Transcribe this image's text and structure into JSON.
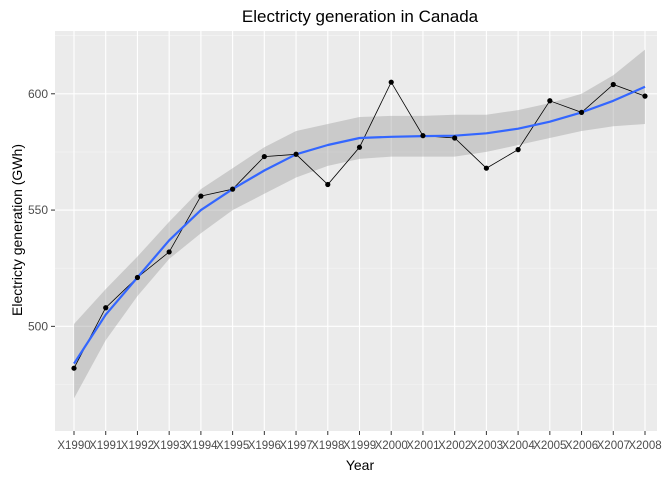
{
  "chart_data": {
    "type": "line",
    "title": "Electricty generation in Canada",
    "xlabel": "Year",
    "ylabel": "Electricty generation (GWh)",
    "categories": [
      "X1990",
      "X1991",
      "X1992",
      "X1993",
      "X1994",
      "X1995",
      "X1996",
      "X1997",
      "X1998",
      "X1999",
      "X2000",
      "X2001",
      "X2002",
      "X2003",
      "X2004",
      "X2005",
      "X2006",
      "X2007",
      "X2008"
    ],
    "values": [
      482,
      508,
      521,
      532,
      556,
      559,
      573,
      574,
      561,
      577,
      605,
      582,
      581,
      568,
      576,
      597,
      592,
      604,
      599
    ],
    "smooth": {
      "method": "loess",
      "values": [
        484,
        505,
        521,
        537,
        550,
        559,
        567,
        574,
        578,
        581,
        581.5,
        581.8,
        582,
        583,
        585,
        588,
        592,
        597,
        603
      ],
      "ci_lower": [
        469,
        494,
        513,
        529,
        540,
        550,
        557,
        564,
        569,
        572,
        573,
        573,
        573,
        575,
        578,
        581,
        584,
        586,
        587
      ],
      "ci_upper": [
        501,
        516,
        530,
        545,
        559,
        568,
        577,
        584,
        587,
        590,
        590.5,
        590.5,
        591,
        591,
        593,
        596,
        600,
        608,
        619
      ]
    },
    "yticks": [
      500,
      550,
      600
    ],
    "ylim": [
      455,
      627
    ],
    "grid": true,
    "colors": {
      "panel": "#ebebeb",
      "grid_major": "#ffffff",
      "grid_minor": "#f5f5f5",
      "point": "#000000",
      "line": "#000000",
      "smooth": "#3366ff",
      "ribbon": "#cccccc",
      "axis_text": "#4d4d4d",
      "title": "#000000"
    }
  }
}
